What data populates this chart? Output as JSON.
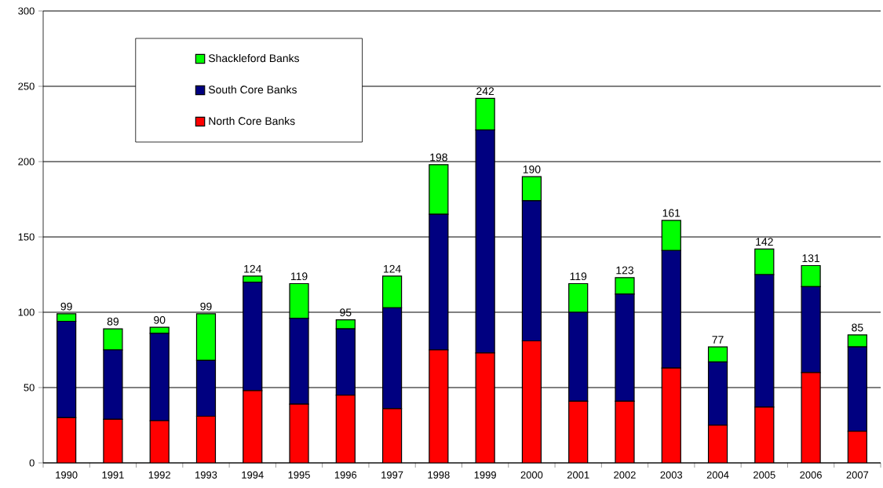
{
  "chart_data": {
    "type": "bar",
    "stacked": true,
    "categories": [
      "1990",
      "1991",
      "1992",
      "1993",
      "1994",
      "1995",
      "1996",
      "1997",
      "1998",
      "1999",
      "2000",
      "2001",
      "2002",
      "2003",
      "2004",
      "2005",
      "2006",
      "2007"
    ],
    "series": [
      {
        "name": "North Core Banks",
        "color": "#ff0000",
        "values": [
          30,
          29,
          28,
          31,
          48,
          39,
          45,
          36,
          75,
          73,
          81,
          41,
          41,
          63,
          25,
          37,
          60,
          21
        ]
      },
      {
        "name": "South Core Banks",
        "color": "#000080",
        "values": [
          64,
          46,
          58,
          37,
          72,
          57,
          44,
          67,
          90,
          148,
          93,
          59,
          71,
          78,
          42,
          88,
          57,
          56
        ]
      },
      {
        "name": "Shackleford Banks",
        "color": "#00ff00",
        "values": [
          5,
          14,
          4,
          31,
          4,
          23,
          6,
          21,
          33,
          21,
          16,
          19,
          11,
          20,
          10,
          17,
          14,
          8
        ]
      }
    ],
    "totals": [
      "99",
      "89",
      "90",
      "99",
      "124",
      "119",
      "95",
      "124",
      "198",
      "242",
      "190",
      "119",
      "123",
      "161",
      "77",
      "142",
      "131",
      "85"
    ],
    "ylim": [
      0,
      300
    ],
    "yticks": [
      0,
      50,
      100,
      150,
      200,
      250,
      300
    ],
    "grid": "y",
    "legend": "top left"
  }
}
